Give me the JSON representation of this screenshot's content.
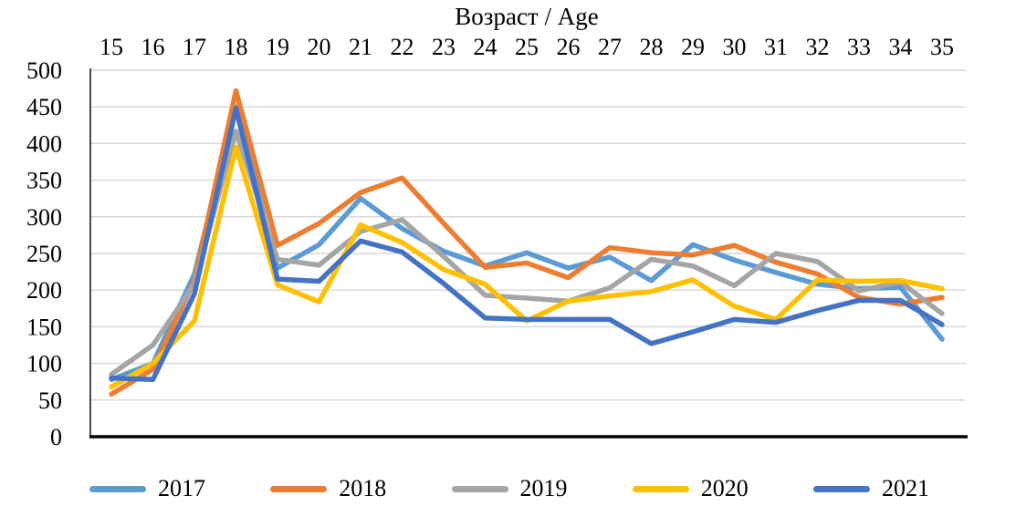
{
  "chart_data": {
    "type": "line",
    "title": "Возраст / Age",
    "x_axis_position": "top",
    "categories": [
      15,
      16,
      17,
      18,
      19,
      20,
      21,
      22,
      23,
      24,
      25,
      26,
      27,
      28,
      29,
      30,
      31,
      32,
      33,
      34,
      35
    ],
    "series": [
      {
        "name": "2017",
        "color": "#5B9BD5",
        "values": [
          78,
          100,
          222,
          450,
          230,
          262,
          325,
          284,
          253,
          233,
          251,
          230,
          245,
          213,
          262,
          241,
          224,
          208,
          202,
          204,
          133
        ]
      },
      {
        "name": "2018",
        "color": "#ED7D31",
        "values": [
          58,
          92,
          213,
          472,
          261,
          291,
          333,
          353,
          291,
          231,
          237,
          217,
          258,
          251,
          248,
          261,
          238,
          222,
          190,
          181,
          190
        ]
      },
      {
        "name": "2019",
        "color": "#A5A5A5",
        "values": [
          85,
          125,
          208,
          417,
          242,
          234,
          280,
          296,
          246,
          193,
          189,
          185,
          203,
          242,
          233,
          206,
          250,
          239,
          199,
          211,
          168
        ]
      },
      {
        "name": "2020",
        "color": "#FFC000",
        "values": [
          68,
          100,
          158,
          395,
          207,
          184,
          289,
          265,
          228,
          208,
          158,
          185,
          192,
          198,
          214,
          178,
          160,
          214,
          212,
          213,
          202
        ]
      },
      {
        "name": "2021",
        "color": "#4472C4",
        "values": [
          80,
          78,
          195,
          448,
          215,
          212,
          267,
          252,
          209,
          162,
          160,
          160,
          160,
          127,
          143,
          160,
          156,
          172,
          186,
          186,
          153
        ]
      }
    ],
    "ylim": [
      0,
      500
    ],
    "ytick_step": 50,
    "ytick_labels": [
      "0",
      "50",
      "100",
      "150",
      "200",
      "250",
      "300",
      "350",
      "400",
      "450",
      "500"
    ],
    "grid": true,
    "gridline_color": "#D9D9D9",
    "axis_color": "#000000",
    "legend_position": "bottom"
  }
}
